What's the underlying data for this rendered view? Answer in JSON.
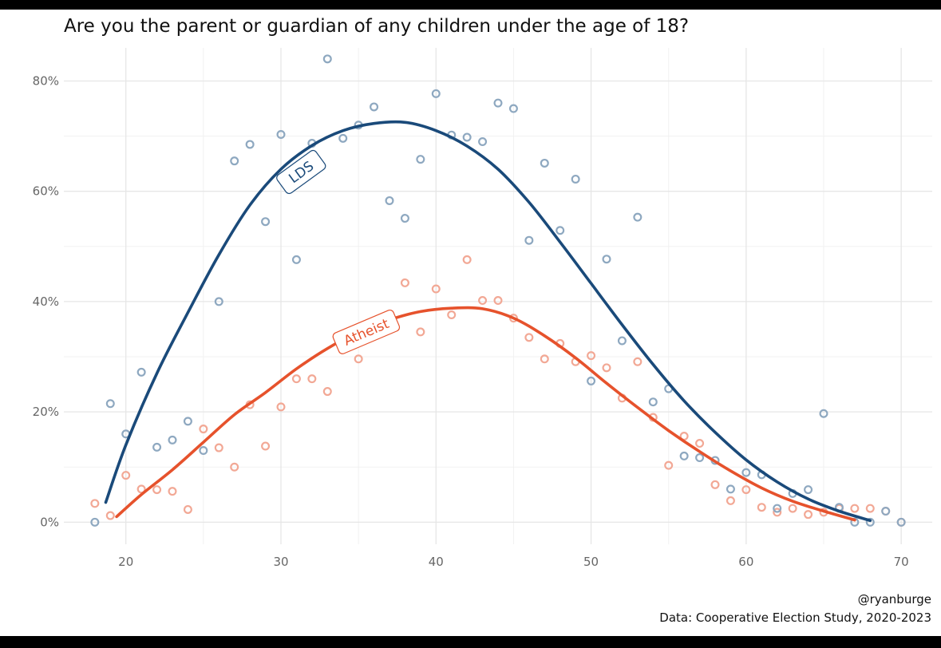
{
  "title": "Are you the parent or guardian of any children under the age of 18?",
  "credit": "@ryanburge",
  "source": "Data: Cooperative Election Study, 2020-2023",
  "colors": {
    "lds": "#1a4a7a",
    "atheist": "#e6522c",
    "lds_point": "#8ea8c0",
    "atheist_point": "#f2a895",
    "grid": "#e6e6e6"
  },
  "chart_data": {
    "type": "scatter",
    "xlim": [
      16,
      72
    ],
    "ylim": [
      -4,
      86
    ],
    "x_ticks": [
      20,
      30,
      40,
      50,
      60,
      70
    ],
    "x_tick_labels": [
      "20",
      "30",
      "40",
      "50",
      "60",
      "70"
    ],
    "y_ticks": [
      0,
      20,
      40,
      60,
      80
    ],
    "y_tick_labels": [
      "0%",
      "20%",
      "40%",
      "60%",
      "80%"
    ],
    "series": [
      {
        "name": "LDS",
        "label": "LDS",
        "points": [
          [
            18,
            0
          ],
          [
            19,
            21.5
          ],
          [
            20,
            16
          ],
          [
            21,
            27.2
          ],
          [
            22,
            13.6
          ],
          [
            23,
            14.9
          ],
          [
            24,
            18.3
          ],
          [
            25,
            13
          ],
          [
            26,
            40
          ],
          [
            27,
            65.5
          ],
          [
            28,
            68.5
          ],
          [
            29,
            54.5
          ],
          [
            30,
            70.3
          ],
          [
            31,
            47.6
          ],
          [
            32,
            68.7
          ],
          [
            33,
            84
          ],
          [
            34,
            69.6
          ],
          [
            35,
            72
          ],
          [
            36,
            75.3
          ],
          [
            37,
            58.3
          ],
          [
            38,
            55.1
          ],
          [
            39,
            65.8
          ],
          [
            40,
            77.7
          ],
          [
            41,
            70.2
          ],
          [
            42,
            69.8
          ],
          [
            43,
            69
          ],
          [
            44,
            76
          ],
          [
            45,
            75
          ],
          [
            46,
            51.1
          ],
          [
            47,
            65.1
          ],
          [
            48,
            52.9
          ],
          [
            49,
            62.2
          ],
          [
            50,
            25.6
          ],
          [
            51,
            47.7
          ],
          [
            52,
            32.9
          ],
          [
            53,
            55.3
          ],
          [
            54,
            21.8
          ],
          [
            55,
            24.2
          ],
          [
            56,
            12
          ],
          [
            57,
            11.7
          ],
          [
            58,
            11.2
          ],
          [
            59,
            6
          ],
          [
            60,
            9
          ],
          [
            61,
            8.6
          ],
          [
            62,
            2.5
          ],
          [
            63,
            5.2
          ],
          [
            64,
            5.9
          ],
          [
            65,
            19.7
          ],
          [
            66,
            2.7
          ],
          [
            67,
            0
          ],
          [
            68,
            0
          ],
          [
            69,
            2
          ],
          [
            70,
            0
          ]
        ],
        "trend": [
          [
            18.7,
            3.6
          ],
          [
            20,
            14
          ],
          [
            22,
            27
          ],
          [
            24,
            38
          ],
          [
            26,
            48.5
          ],
          [
            28,
            57.5
          ],
          [
            30,
            64
          ],
          [
            32,
            68.3
          ],
          [
            34,
            71
          ],
          [
            36,
            72.3
          ],
          [
            38,
            72.5
          ],
          [
            40,
            71
          ],
          [
            42,
            68.2
          ],
          [
            44,
            64
          ],
          [
            46,
            58
          ],
          [
            48,
            50.8
          ],
          [
            50,
            43.3
          ],
          [
            52,
            35.8
          ],
          [
            54,
            28.6
          ],
          [
            56,
            22
          ],
          [
            58,
            16.3
          ],
          [
            60,
            11.3
          ],
          [
            62,
            7.3
          ],
          [
            64,
            4.2
          ],
          [
            66,
            2
          ],
          [
            68,
            0.3
          ]
        ]
      },
      {
        "name": "Atheist",
        "label": "Atheist",
        "points": [
          [
            18,
            3.4
          ],
          [
            19,
            1.2
          ],
          [
            20,
            8.5
          ],
          [
            21,
            6
          ],
          [
            22,
            5.9
          ],
          [
            23,
            5.6
          ],
          [
            24,
            2.3
          ],
          [
            25,
            16.9
          ],
          [
            26,
            13.5
          ],
          [
            27,
            10
          ],
          [
            28,
            21.3
          ],
          [
            29,
            13.8
          ],
          [
            30,
            20.9
          ],
          [
            31,
            26
          ],
          [
            32,
            26
          ],
          [
            33,
            23.7
          ],
          [
            35,
            29.6
          ],
          [
            38,
            43.4
          ],
          [
            39,
            34.5
          ],
          [
            40,
            42.3
          ],
          [
            41,
            37.6
          ],
          [
            42,
            47.6
          ],
          [
            43,
            40.2
          ],
          [
            44,
            40.2
          ],
          [
            45,
            37
          ],
          [
            46,
            33.5
          ],
          [
            47,
            29.6
          ],
          [
            48,
            32.4
          ],
          [
            49,
            29.1
          ],
          [
            50,
            30.2
          ],
          [
            51,
            28
          ],
          [
            52,
            22.5
          ],
          [
            53,
            29.1
          ],
          [
            54,
            19
          ],
          [
            55,
            10.3
          ],
          [
            56,
            15.6
          ],
          [
            57,
            14.3
          ],
          [
            58,
            6.8
          ],
          [
            59,
            3.9
          ],
          [
            60,
            5.9
          ],
          [
            61,
            2.7
          ],
          [
            62,
            1.8
          ],
          [
            63,
            2.5
          ],
          [
            64,
            1.4
          ],
          [
            65,
            1.8
          ],
          [
            66,
            2.5
          ],
          [
            67,
            2.5
          ],
          [
            68,
            2.5
          ],
          [
            69,
            2
          ],
          [
            70,
            0
          ]
        ],
        "trend": [
          [
            19.4,
            1
          ],
          [
            21,
            5
          ],
          [
            23,
            9.5
          ],
          [
            25,
            14.5
          ],
          [
            27,
            19.5
          ],
          [
            29,
            23.5
          ],
          [
            31,
            27.8
          ],
          [
            33,
            31.5
          ],
          [
            35,
            34.5
          ],
          [
            37,
            36.7
          ],
          [
            39,
            38.2
          ],
          [
            41,
            38.8
          ],
          [
            43,
            38.7
          ],
          [
            45,
            37
          ],
          [
            47,
            33.8
          ],
          [
            49,
            29.8
          ],
          [
            51,
            25.2
          ],
          [
            53,
            20.8
          ],
          [
            55,
            16.6
          ],
          [
            57,
            12.8
          ],
          [
            59,
            9.3
          ],
          [
            61,
            6.2
          ],
          [
            63,
            3.8
          ],
          [
            65,
            2
          ],
          [
            67,
            0.4
          ]
        ]
      }
    ]
  }
}
